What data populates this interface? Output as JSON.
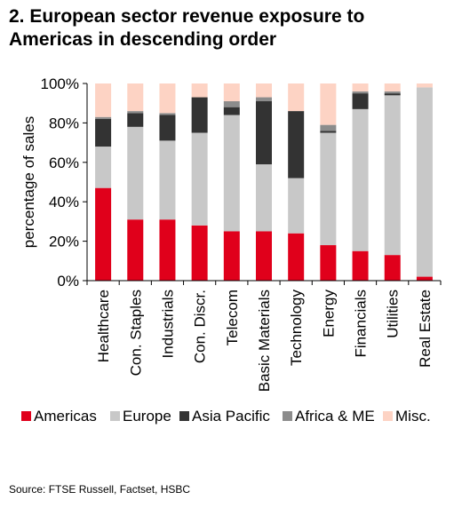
{
  "title": "2. European sector revenue exposure to Americas in descending order",
  "source": "Source: FTSE Russell, Factset, HSBC",
  "chart_data": {
    "type": "bar",
    "stacked": true,
    "ylabel": "percentage of sales",
    "ylim": [
      0,
      100
    ],
    "yticks": [
      "0%",
      "20%",
      "40%",
      "60%",
      "80%",
      "100%"
    ],
    "grid": false,
    "legend_position": "bottom",
    "categories": [
      "Healthcare",
      "Con. Staples",
      "Industrials",
      "Con. Discr.",
      "Telecom",
      "Basic Materials",
      "Technology",
      "Energy",
      "Financials",
      "Utilities",
      "Real Estate"
    ],
    "series": [
      {
        "name": "Americas",
        "color": "#e0001b",
        "values": [
          47,
          31,
          31,
          28,
          25,
          25,
          24,
          18,
          15,
          13,
          2
        ]
      },
      {
        "name": "Europe",
        "color": "#c8c8c8",
        "values": [
          21,
          47,
          40,
          47,
          59,
          34,
          28,
          57,
          72,
          81,
          96
        ]
      },
      {
        "name": "Asia Pacific",
        "color": "#333333",
        "values": [
          14,
          7,
          13,
          18,
          4,
          32,
          34,
          1,
          8,
          1,
          0
        ]
      },
      {
        "name": "Africa & ME",
        "color": "#8c8c8c",
        "values": [
          1,
          1,
          1,
          0,
          3,
          2,
          0,
          3,
          1,
          1,
          0
        ]
      },
      {
        "name": "Misc.",
        "color": "#fdd3c4",
        "values": [
          17,
          14,
          15,
          7,
          9,
          7,
          14,
          21,
          4,
          4,
          2
        ]
      }
    ]
  }
}
